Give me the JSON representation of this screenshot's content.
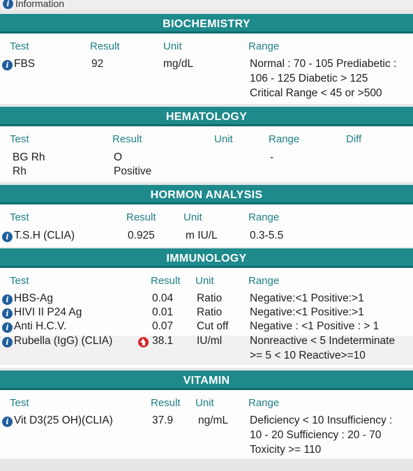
{
  "header": {
    "title": "Information"
  },
  "sections": {
    "biochemistry": {
      "title": "BIOCHEMISTRY",
      "columns": [
        "Test",
        "Result",
        "Unit",
        "Range"
      ],
      "rows": [
        {
          "test": "FBS",
          "result": "92",
          "unit": "mg/dL",
          "range_lines": [
            "Normal : 70 - 105 Prediabetic :",
            "106 - 125 Diabetic > 125",
            "Critical Range < 45 or >500"
          ]
        }
      ]
    },
    "hematology": {
      "title": "HEMATOLOGY",
      "columns": [
        "Test",
        "Result",
        "Unit",
        "Range",
        "Diff"
      ],
      "rows": [
        {
          "test": "BG Rh",
          "result": "O",
          "range": "-"
        },
        {
          "test": "Rh",
          "result": "Positive"
        }
      ]
    },
    "hormone": {
      "title": "HORMON ANALYSIS",
      "columns": [
        "Test",
        "Result",
        "Unit",
        "Range"
      ],
      "rows": [
        {
          "test": "T.S.H (CLIA)",
          "result": "0.925",
          "unit": "m IU/L",
          "range": "0.3-5.5"
        }
      ]
    },
    "immunology": {
      "title": "IMMUNOLOGY",
      "columns": [
        "Test",
        "Result",
        "Unit",
        "Range"
      ],
      "rows": [
        {
          "test": "HBS-Ag",
          "result": "0.04",
          "unit": "Ratio",
          "range": "Negative:<1 Positive:>1"
        },
        {
          "test": "HIVI II P24 Ag",
          "result": "0.01",
          "unit": "Ratio",
          "range": "Negative:<1 Positive:>1"
        },
        {
          "test": "Anti H.C.V.",
          "result": "0.07",
          "unit": "Cut off",
          "range": "Negative : <1 Positive : > 1"
        },
        {
          "test": "Rubella (IgG) (CLIA)",
          "result": "38.1",
          "unit": "IU/ml",
          "flag": "high",
          "range_lines": [
            "Nonreactive < 5 Indeterminate",
            ">= 5 < 10 Reactive>=10"
          ]
        }
      ]
    },
    "vitamin": {
      "title": "VITAMIN",
      "columns": [
        "Test",
        "Result",
        "Unit",
        "Range"
      ],
      "rows": [
        {
          "test": "Vit D3(25 OH)(CLIA)",
          "result": "37.9",
          "unit": "ng/mL",
          "range_lines": [
            "Deficiency < 10 Insufficiency :",
            "10 - 20 Sufficiency : 20 - 70",
            "Toxicity >= 110"
          ]
        }
      ]
    }
  },
  "colors": {
    "header_bg": "#1e8a8c",
    "column_header_text": "#1e7f85",
    "info_icon": "#1f5e9c",
    "alert_icon": "#d42a2a"
  },
  "icons": {
    "info": "info-icon",
    "alert": "arrow-up-alert-icon"
  }
}
